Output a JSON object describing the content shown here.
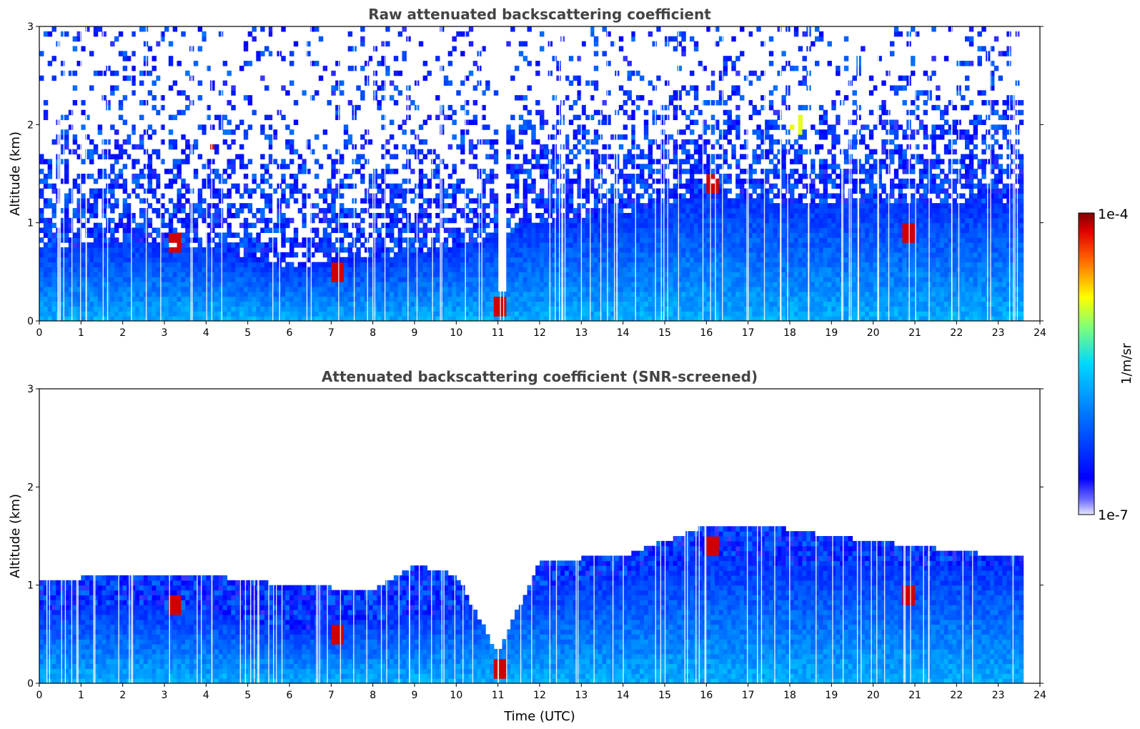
{
  "chart_data": {
    "type": "heatmap",
    "panels": [
      {
        "title": "Raw attenuated backscattering coefficient",
        "xlabel": "",
        "ylabel": "Altitude (km)",
        "xlim": [
          0,
          24
        ],
        "ylim": [
          0,
          3
        ],
        "xticks": [
          "0",
          "1",
          "2",
          "3",
          "4",
          "5",
          "6",
          "7",
          "8",
          "9",
          "10",
          "11",
          "12",
          "13",
          "14",
          "15",
          "16",
          "17",
          "18",
          "19",
          "20",
          "21",
          "22",
          "23",
          "24"
        ],
        "yticks": [
          "0",
          "1",
          "2",
          "3"
        ],
        "data_end_hour": 23.6,
        "features": [
          {
            "kind": "aerosol_layer_top_km",
            "hours": [
              0,
              2,
              4,
              6,
              8,
              10,
              12,
              14,
              16,
              18,
              20,
              22,
              23.6
            ],
            "values": [
              0.75,
              0.8,
              0.75,
              0.55,
              0.65,
              0.75,
              1.0,
              1.1,
              1.3,
              1.2,
              1.2,
              1.2,
              1.2
            ]
          },
          {
            "kind": "cloud",
            "hour": 4.1,
            "alt_km": 1.8,
            "level": "high"
          },
          {
            "kind": "cloud",
            "hour": 7.2,
            "alt_km": 0.5,
            "level": "high"
          },
          {
            "kind": "cloud",
            "hour": 11.1,
            "alt_km": 0.15,
            "level": "high"
          },
          {
            "kind": "cloud",
            "hour": 3.3,
            "alt_km": 0.8,
            "level": "high"
          },
          {
            "kind": "cloud",
            "hour": 16.2,
            "alt_km": 1.4,
            "level": "high"
          },
          {
            "kind": "cloud",
            "hour": 18.2,
            "alt_km": 2.0,
            "level": "medium"
          },
          {
            "kind": "cloud",
            "hour": 20.9,
            "alt_km": 0.9,
            "level": "high"
          },
          {
            "kind": "rain_gap",
            "hour": 11.1,
            "alt_range_km": [
              0.3,
              3.0
            ]
          }
        ]
      },
      {
        "title": "Attenuated backscattering coefficient (SNR-screened)",
        "xlabel": "Time (UTC)",
        "ylabel": "Altitude (km)",
        "xlim": [
          0,
          24
        ],
        "ylim": [
          0,
          3
        ],
        "xticks": [
          "0",
          "1",
          "2",
          "3",
          "4",
          "5",
          "6",
          "7",
          "8",
          "9",
          "10",
          "11",
          "12",
          "13",
          "14",
          "15",
          "16",
          "17",
          "18",
          "19",
          "20",
          "21",
          "22",
          "23",
          "24"
        ],
        "yticks": [
          "0",
          "1",
          "2",
          "3"
        ],
        "data_end_hour": 23.6,
        "screened_top_km": {
          "hours": [
            0,
            2,
            4,
            6,
            8,
            9,
            10,
            11,
            12,
            14,
            16,
            17.5,
            19,
            21,
            23,
            23.6
          ],
          "values": [
            1.05,
            1.1,
            1.1,
            1.0,
            0.95,
            1.2,
            1.1,
            0.3,
            1.25,
            1.3,
            1.6,
            1.6,
            1.5,
            1.4,
            1.3,
            1.3
          ]
        }
      }
    ],
    "colorbar": {
      "label": "1/m/sr",
      "min_label": "1e-7",
      "max_label": "1e-4",
      "colormap": "jet",
      "scale": "log"
    }
  }
}
